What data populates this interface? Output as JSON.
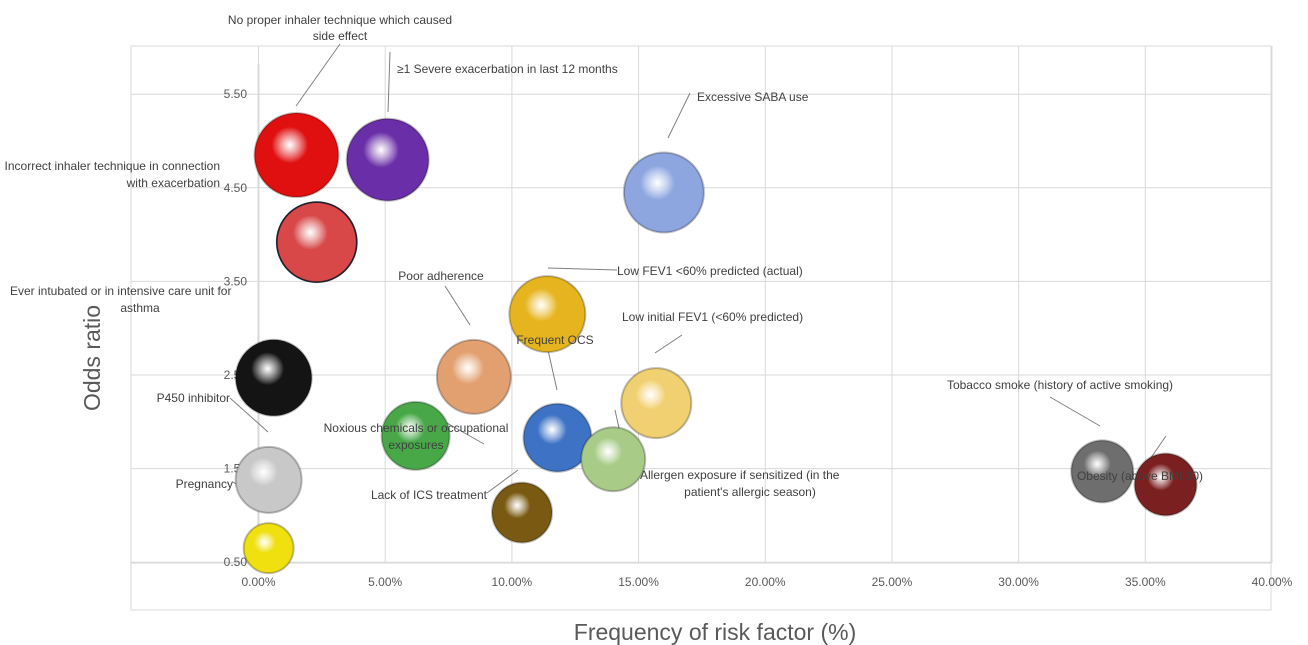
{
  "chart_data": {
    "type": "bubble",
    "xlabel": "Frequency of risk factor (%)",
    "ylabel": "Odds ratio",
    "xlim": [
      -0.05,
      0.4
    ],
    "ylim": [
      0,
      5.5
    ],
    "x_ticks": [
      "0.00%",
      "5.00%",
      "10.00%",
      "15.00%",
      "20.00%",
      "25.00%",
      "30.00%",
      "35.00%",
      "40.00%"
    ],
    "y_ticks": [
      "0.50",
      "1.50",
      "2.50",
      "3.50",
      "4.50",
      "5.50"
    ],
    "grid": true,
    "points": [
      {
        "label": "No proper inhaler technique which caused side effect",
        "x": 0.015,
        "y": 4.85,
        "color": "#e01010"
      },
      {
        "label": "≥1 Severe exacerbation in last 12 months",
        "x": 0.051,
        "y": 4.8,
        "color": "#6a2fa8"
      },
      {
        "label": "Excessive SABA use",
        "x": 0.16,
        "y": 4.45,
        "color": "#8da6e0"
      },
      {
        "label": "Incorrect inhaler technique in connection with exacerbation",
        "x": 0.023,
        "y": 3.92,
        "color": "#d84848"
      },
      {
        "label": "Low FEV1 <60% predicted (actual)",
        "x": 0.114,
        "y": 3.15,
        "color": "#e6b41e"
      },
      {
        "label": "Ever intubated or in intensive care unit for asthma",
        "x": 0.006,
        "y": 2.47,
        "color": "#141414"
      },
      {
        "label": "Poor adherence",
        "x": 0.085,
        "y": 2.48,
        "color": "#e2a070"
      },
      {
        "label": "Low initial FEV1 (<60% predicted)",
        "x": 0.157,
        "y": 2.2,
        "color": "#f0d070"
      },
      {
        "label": "Frequent OCS",
        "x": 0.118,
        "y": 1.83,
        "color": "#3d72c4"
      },
      {
        "label": "Noxious chemicals or occupational exposures",
        "x": 0.062,
        "y": 1.85,
        "color": "#48a848"
      },
      {
        "label": "Allergen exposure if sensitized (in the patient's allergic season)",
        "x": 0.14,
        "y": 1.6,
        "color": "#a8cc88"
      },
      {
        "label": "P450 inhibitor",
        "x": 0.004,
        "y": 1.38,
        "color": "#c8c8c8"
      },
      {
        "label": "Lack of ICS treatment",
        "x": 0.104,
        "y": 1.03,
        "color": "#7a5a12"
      },
      {
        "label": "Pregnancy",
        "x": 0.004,
        "y": 0.65,
        "color": "#f0e010"
      },
      {
        "label": "Tobacco smoke (history of active smoking)",
        "x": 0.333,
        "y": 1.47,
        "color": "#6e6e6e"
      },
      {
        "label": "Obesity (above BMI 30)",
        "x": 0.358,
        "y": 1.33,
        "color": "#7a2020"
      }
    ],
    "annotation_lines": [
      "No proper inhaler technique which caused",
      "side effect",
      "≥1 Severe exacerbation in last 12 months",
      "Excessive SABA use",
      "Incorrect inhaler technique in connection",
      "with exacerbation",
      "Low FEV1 <60% predicted (actual)",
      "Ever intubated or in intensive care unit for",
      "asthma",
      "Poor adherence",
      "Low initial FEV1 (<60% predicted)",
      "Frequent OCS",
      "Noxious chemicals or occupational",
      "exposures",
      "Allergen exposure if sensitized (in the",
      "patient's allergic season)",
      "P450 inhibitor",
      "Lack of ICS treatment",
      "Pregnancy",
      "Tobacco smoke (history of active smoking)",
      "Obesity (above BMI 30)"
    ]
  }
}
